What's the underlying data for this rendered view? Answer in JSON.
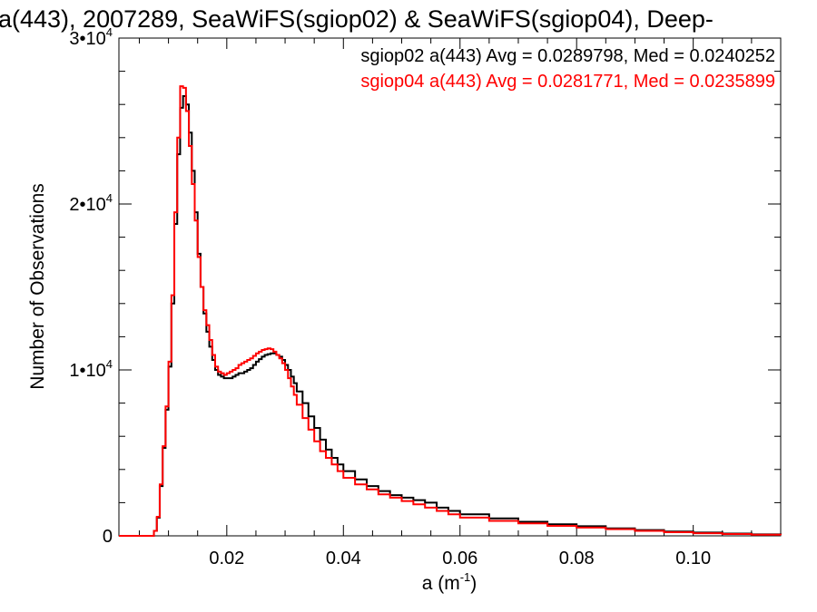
{
  "chart_data": {
    "type": "line",
    "title": "a(443), 2007289, SeaWiFS(sgiop02) & SeaWiFS(sgiop04), Deep-",
    "xlabel": "a (m",
    "xlabel_sup": "-1",
    "xlabel_close": ")",
    "ylabel": "Number of Observations",
    "xlim": [
      0.0015,
      0.115
    ],
    "ylim": [
      0,
      30000
    ],
    "xticks": [
      {
        "value": 0.02,
        "label": "0.02"
      },
      {
        "value": 0.04,
        "label": "0.04"
      },
      {
        "value": 0.06,
        "label": "0.06"
      },
      {
        "value": 0.08,
        "label": "0.08"
      },
      {
        "value": 0.1,
        "label": "0.10"
      }
    ],
    "yticks": [
      {
        "value": 0,
        "base": "0",
        "exp": ""
      },
      {
        "value": 10000,
        "base": "1•10",
        "exp": "4"
      },
      {
        "value": 20000,
        "base": "2•10",
        "exp": "4"
      },
      {
        "value": 30000,
        "base": "3•10",
        "exp": "4"
      }
    ],
    "step_style": "histogram",
    "series": [
      {
        "name": "sgiop02 a(443)",
        "legend": "sgiop02 a(443) Avg = 0.0289798, Med = 0.0240252",
        "color": "#000000",
        "x": [
          0.0015,
          0.0062,
          0.007,
          0.0075,
          0.008,
          0.0085,
          0.009,
          0.0095,
          0.01,
          0.0105,
          0.011,
          0.0115,
          0.012,
          0.0125,
          0.013,
          0.0135,
          0.014,
          0.0145,
          0.015,
          0.0155,
          0.016,
          0.0165,
          0.017,
          0.0175,
          0.018,
          0.0185,
          0.019,
          0.0195,
          0.02,
          0.0205,
          0.021,
          0.0215,
          0.022,
          0.0225,
          0.023,
          0.0235,
          0.024,
          0.0245,
          0.025,
          0.0255,
          0.026,
          0.0265,
          0.027,
          0.0275,
          0.028,
          0.0285,
          0.029,
          0.0295,
          0.03,
          0.0305,
          0.031,
          0.0315,
          0.032,
          0.033,
          0.034,
          0.035,
          0.036,
          0.037,
          0.038,
          0.039,
          0.04,
          0.042,
          0.044,
          0.046,
          0.048,
          0.05,
          0.052,
          0.054,
          0.056,
          0.058,
          0.06,
          0.065,
          0.07,
          0.075,
          0.08,
          0.085,
          0.09,
          0.095,
          0.1,
          0.105,
          0.11,
          0.115
        ],
        "y": [
          0,
          0,
          0,
          300,
          1100,
          3000,
          5300,
          7600,
          10200,
          14000,
          18800,
          23000,
          25800,
          26500,
          26000,
          24300,
          22000,
          19500,
          17000,
          15000,
          13400,
          12300,
          11400,
          10600,
          10000,
          9700,
          9600,
          9500,
          9500,
          9500,
          9600,
          9700,
          9800,
          9800,
          9900,
          10000,
          10100,
          10300,
          10500,
          10650,
          10800,
          10900,
          10950,
          11000,
          11000,
          10900,
          10800,
          10600,
          10300,
          10000,
          9600,
          9200,
          8700,
          8000,
          7200,
          6500,
          5800,
          5200,
          4700,
          4300,
          3900,
          3400,
          3000,
          2700,
          2450,
          2300,
          2150,
          2000,
          1700,
          1500,
          1300,
          1050,
          850,
          700,
          580,
          450,
          350,
          260,
          200,
          140,
          90,
          60
        ]
      },
      {
        "name": "sgiop04 a(443)",
        "legend": "sgiop04 a(443) Avg = 0.0281771, Med = 0.0235899",
        "color": "#ff0000",
        "x": [
          0.0015,
          0.0062,
          0.007,
          0.0075,
          0.008,
          0.0085,
          0.009,
          0.0095,
          0.01,
          0.0105,
          0.011,
          0.0115,
          0.012,
          0.0125,
          0.013,
          0.0135,
          0.014,
          0.0145,
          0.015,
          0.0155,
          0.016,
          0.0165,
          0.017,
          0.0175,
          0.018,
          0.0185,
          0.019,
          0.0195,
          0.02,
          0.0205,
          0.021,
          0.0215,
          0.022,
          0.0225,
          0.023,
          0.0235,
          0.024,
          0.0245,
          0.025,
          0.0255,
          0.026,
          0.0265,
          0.027,
          0.0275,
          0.028,
          0.0285,
          0.029,
          0.0295,
          0.03,
          0.0305,
          0.031,
          0.0315,
          0.032,
          0.033,
          0.034,
          0.035,
          0.036,
          0.037,
          0.038,
          0.039,
          0.04,
          0.042,
          0.044,
          0.046,
          0.048,
          0.05,
          0.052,
          0.054,
          0.056,
          0.058,
          0.06,
          0.065,
          0.07,
          0.075,
          0.08,
          0.085,
          0.09,
          0.095,
          0.1,
          0.105,
          0.11,
          0.115
        ],
        "y": [
          0,
          0,
          0,
          300,
          1150,
          3100,
          5400,
          7800,
          10500,
          14500,
          19500,
          24000,
          27100,
          27000,
          25600,
          23500,
          21200,
          19000,
          16800,
          15000,
          13600,
          12700,
          11800,
          10900,
          10200,
          9900,
          9800,
          9700,
          9800,
          9900,
          10000,
          10100,
          10300,
          10400,
          10500,
          10600,
          10700,
          10850,
          11000,
          11100,
          11200,
          11250,
          11300,
          11250,
          11100,
          10900,
          10700,
          10400,
          10000,
          9500,
          9000,
          8500,
          7900,
          7100,
          6400,
          5700,
          5100,
          4700,
          4300,
          3900,
          3500,
          3100,
          2800,
          2500,
          2300,
          2100,
          1900,
          1700,
          1500,
          1300,
          1100,
          900,
          750,
          600,
          500,
          400,
          300,
          220,
          160,
          110,
          70,
          50
        ]
      }
    ],
    "legend_position": "top-right",
    "grid": false
  }
}
